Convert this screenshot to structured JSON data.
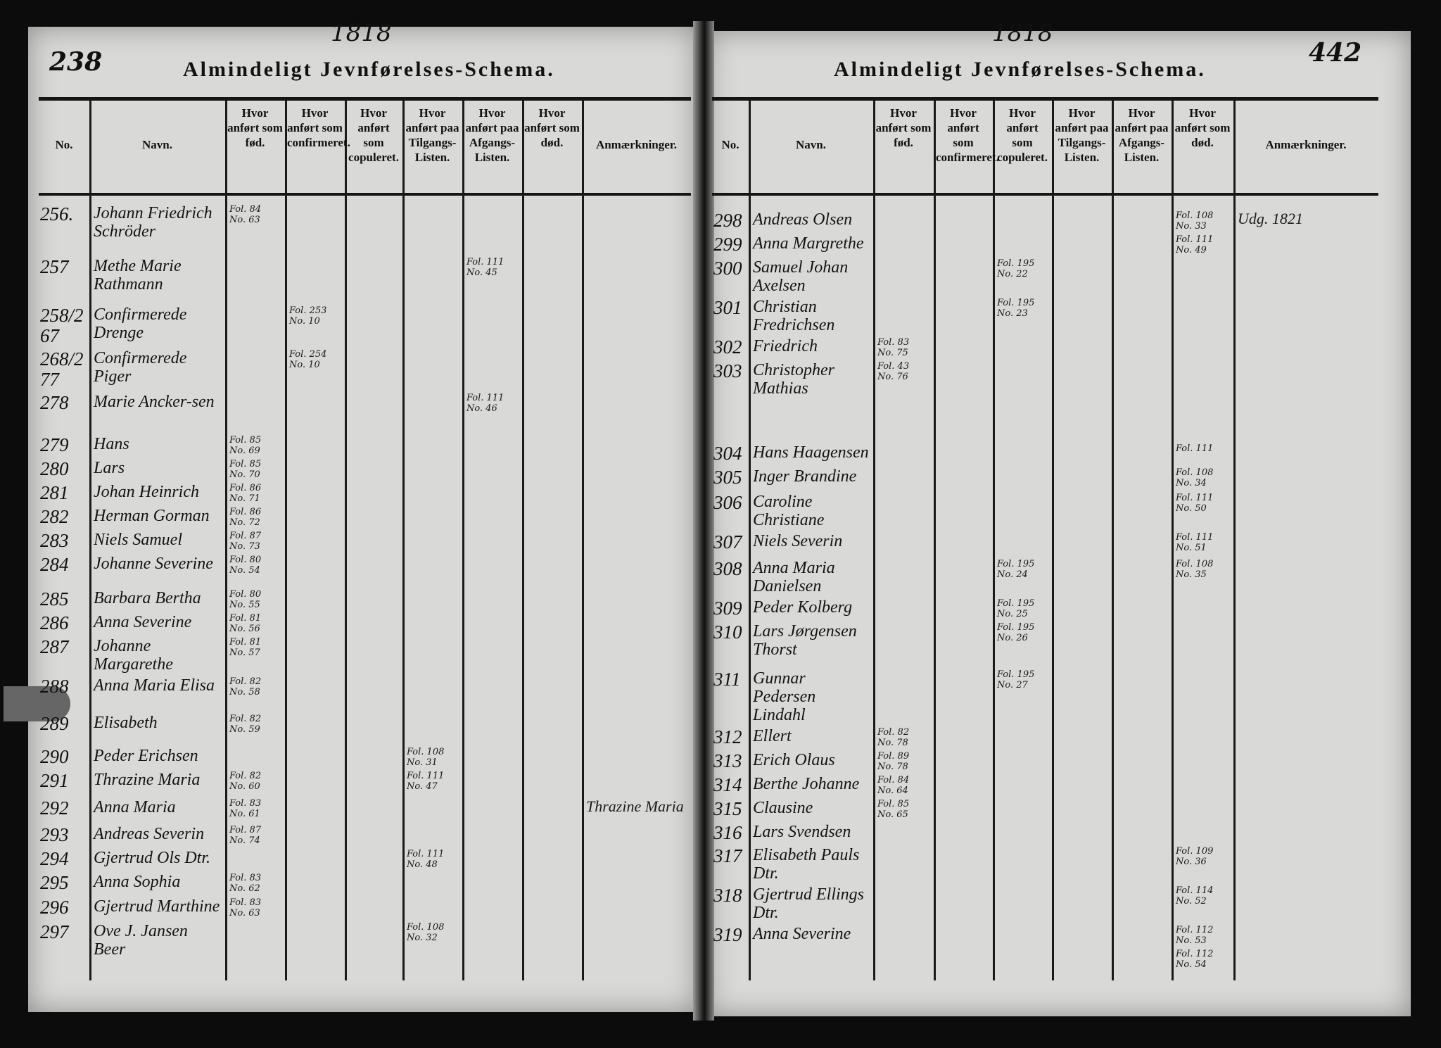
{
  "left_page": {
    "year": "1818",
    "page_number": "238",
    "title": "Almindeligt Jevnførelses-Schema.",
    "columns": [
      "No.",
      "Navn.",
      "Hvor anført som fød.",
      "Hvor anført som confirmeret.",
      "Hvor anført som copuleret.",
      "Hvor anført paa Tilgangs-Listen.",
      "Hvor anført paa Afgangs-Listen.",
      "Hvor anført som død.",
      "Anmærkninger."
    ],
    "rows": [
      {
        "no": "256.",
        "name": "Johann Friedrich Schröder",
        "fod": "Fol. 84\nNo. 63"
      },
      {
        "no": "257",
        "name": "Methe Marie Rathmann",
        "afg": "Fol. 111\nNo. 45"
      },
      {
        "no": "258/267",
        "name": "Confirmerede Drenge",
        "conf": "Fol. 253\nNo. 10"
      },
      {
        "no": "268/277",
        "name": "Confirmerede Piger",
        "conf": "Fol. 254\nNo. 10"
      },
      {
        "no": "278",
        "name": "Marie Ancker-sen",
        "afg": "Fol. 111\nNo. 46"
      },
      {
        "no": "279",
        "name": "Hans",
        "fod": "Fol. 85\nNo. 69"
      },
      {
        "no": "280",
        "name": "Lars",
        "fod": "Fol. 85\nNo. 70"
      },
      {
        "no": "281",
        "name": "Johan Heinrich",
        "fod": "Fol. 86\nNo. 71"
      },
      {
        "no": "282",
        "name": "Herman Gorman",
        "fod": "Fol. 86\nNo. 72"
      },
      {
        "no": "283",
        "name": "Niels Samuel",
        "fod": "Fol. 87\nNo. 73"
      },
      {
        "no": "284",
        "name": "Johanne Severine",
        "fod": "Fol. 80\nNo. 54"
      },
      {
        "no": "285",
        "name": "Barbara Bertha",
        "fod": "Fol. 80\nNo. 55"
      },
      {
        "no": "286",
        "name": "Anna Severine",
        "fod": "Fol. 81\nNo. 56"
      },
      {
        "no": "287",
        "name": "Johanne Margarethe",
        "fod": "Fol. 81\nNo. 57"
      },
      {
        "no": "288",
        "name": "Anna Maria Elisa",
        "fod": "Fol. 82\nNo. 58"
      },
      {
        "no": "289",
        "name": "Elisabeth",
        "fod": "Fol. 82\nNo. 59"
      },
      {
        "no": "290",
        "name": "Peder Erichsen",
        "tilg": "Fol. 108\nNo. 31"
      },
      {
        "no": "291",
        "name": "Thrazine Maria",
        "fod": "Fol. 82\nNo. 60",
        "tilg": "Fol. 111\nNo. 47"
      },
      {
        "no": "292",
        "name": "Anna Maria",
        "fod": "Fol. 83\nNo. 61",
        "anm": "Thrazine Maria"
      },
      {
        "no": "293",
        "name": "Andreas Severin",
        "fod": "Fol. 87\nNo. 74"
      },
      {
        "no": "294",
        "name": "Gjertrud Ols Dtr.",
        "tilg": "Fol. 111\nNo. 48"
      },
      {
        "no": "295",
        "name": "Anna Sophia",
        "fod": "Fol. 83\nNo. 62"
      },
      {
        "no": "296",
        "name": "Gjertrud Marthine",
        "fod": "Fol. 83\nNo. 63"
      },
      {
        "no": "297",
        "name": "Ove J. Jansen Beer",
        "tilg": "Fol. 108\nNo. 32"
      }
    ]
  },
  "right_page": {
    "year": "1818",
    "page_number": "442",
    "title": "Almindeligt Jevnførelses-Schema.",
    "columns": [
      "No.",
      "Navn.",
      "Hvor anført som fød.",
      "Hvor anført som confirmeret.",
      "Hvor anført som copuleret.",
      "Hvor anført paa Tilgangs-Listen.",
      "Hvor anført paa Afgangs-Listen.",
      "Hvor anført som død.",
      "Anmærkninger."
    ],
    "rows": [
      {
        "no": "298",
        "name": "Andreas Olsen",
        "dod": "Fol. 108\nNo. 33",
        "anm": "Udg. 1821"
      },
      {
        "no": "299",
        "name": "Anna Margrethe",
        "dod": "Fol. 111\nNo. 49"
      },
      {
        "no": "300",
        "name": "Samuel Johan Axelsen",
        "cop": "Fol. 195\nNo. 22"
      },
      {
        "no": "301",
        "name": "Christian Fredrichsen",
        "cop": "Fol. 195\nNo. 23"
      },
      {
        "no": "302",
        "name": "Friedrich",
        "fod": "Fol. 83\nNo. 75"
      },
      {
        "no": "303",
        "name": "Christopher Mathias",
        "fod": "Fol. 43\nNo. 76"
      },
      {
        "no": "304",
        "name": "Hans Haagensen",
        "dod": "Fol. 111"
      },
      {
        "no": "305",
        "name": "Inger Brandine",
        "dod": "Fol. 108\nNo. 34"
      },
      {
        "no": "306",
        "name": "Caroline Christiane",
        "dod": "Fol. 111\nNo. 50"
      },
      {
        "no": "307",
        "name": "Niels Severin",
        "dod": "Fol. 111\nNo. 51"
      },
      {
        "no": "308",
        "name": "Anna Maria Danielsen",
        "cop": "Fol. 195\nNo. 24",
        "dod": "Fol. 108\nNo. 35"
      },
      {
        "no": "309",
        "name": "Peder Kolberg",
        "cop": "Fol. 195\nNo. 25"
      },
      {
        "no": "310",
        "name": "Lars Jørgensen Thorst",
        "cop": "Fol. 195\nNo. 26"
      },
      {
        "no": "311",
        "name": "Gunnar Pedersen Lindahl",
        "cop": "Fol. 195\nNo. 27"
      },
      {
        "no": "312",
        "name": "Ellert",
        "fod": "Fol. 82\nNo. 78"
      },
      {
        "no": "313",
        "name": "Erich Olaus",
        "fod": "Fol. 89\nNo. 78"
      },
      {
        "no": "314",
        "name": "Berthe Johanne",
        "fod": "Fol. 84\nNo. 64"
      },
      {
        "no": "315",
        "name": "Clausine",
        "fod": "Fol. 85\nNo. 65"
      },
      {
        "no": "316",
        "name": "Lars Svendsen"
      },
      {
        "no": "317",
        "name": "Elisabeth Pauls Dtr.",
        "dod": "Fol. 109\nNo. 36"
      },
      {
        "no": "318",
        "name": "Gjertrud Ellings Dtr.",
        "dod": "Fol. 114\nNo. 52"
      },
      {
        "no": "319",
        "name": "Anna Severine",
        "dod": "Fol. 112\nNo. 53"
      },
      {
        "no": "",
        "name": "",
        "dod": "Fol. 112\nNo. 54"
      }
    ]
  }
}
